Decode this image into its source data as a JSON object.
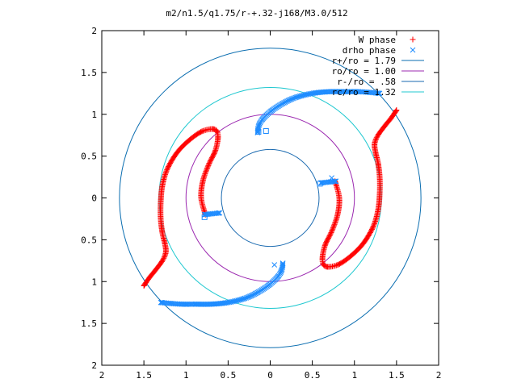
{
  "chart_data": {
    "type": "scatter",
    "title": "m2/n1.5/q1.75/r-+.32-j168/M3.0/512",
    "xlabel": "",
    "ylabel": "",
    "xlim": [
      -2,
      2
    ],
    "ylim": [
      -2,
      2
    ],
    "x_ticks": [
      -2,
      -1.5,
      -1,
      -0.5,
      0,
      0.5,
      1,
      1.5,
      2
    ],
    "x_tick_labels": [
      "2",
      "1.5",
      "1",
      "0.5",
      "0",
      "0.5",
      "1",
      "1.5",
      "2"
    ],
    "y_ticks": [
      2,
      1.5,
      1,
      0.5,
      0,
      -0.5,
      -1,
      -1.5,
      -2
    ],
    "y_tick_labels": [
      "2",
      "1.5",
      "1",
      "0.5",
      "0",
      "0.5",
      "1",
      "1.5",
      "2"
    ],
    "grid": false,
    "legend_position": "top-right",
    "circles": [
      {
        "name": "r+/ro = 1.79",
        "radius": 1.79,
        "color": "#0a6db0"
      },
      {
        "name": "ro/ro = 1.00",
        "radius": 1.0,
        "color": "#9b28b0"
      },
      {
        "name": "r-/ro = .58",
        "radius": 0.58,
        "color": "#1a6ab0"
      },
      {
        "name": "rc/ro = 1.32",
        "radius": 1.32,
        "color": "#20c8d0"
      }
    ],
    "series": [
      {
        "name": "W phase",
        "marker": "+",
        "color": "#ff0000",
        "arms": [
          [
            [
              -0.77,
              -0.2
            ],
            [
              -0.82,
              0.0
            ],
            [
              -0.8,
              0.2
            ],
            [
              -0.73,
              0.4
            ],
            [
              -0.65,
              0.57
            ],
            [
              -0.62,
              0.74
            ],
            [
              -0.66,
              0.82
            ],
            [
              -0.8,
              0.8
            ],
            [
              -0.95,
              0.7
            ],
            [
              -1.1,
              0.55
            ],
            [
              -1.22,
              0.35
            ],
            [
              -1.28,
              0.15
            ],
            [
              -1.3,
              -0.05
            ],
            [
              -1.3,
              -0.25
            ],
            [
              -1.28,
              -0.42
            ],
            [
              -1.25,
              -0.55
            ],
            [
              -1.24,
              -0.65
            ],
            [
              -1.28,
              -0.75
            ],
            [
              -1.36,
              -0.86
            ],
            [
              -1.44,
              -0.96
            ],
            [
              -1.5,
              -1.05
            ]
          ],
          [
            [
              0.77,
              0.2
            ],
            [
              0.82,
              0.0
            ],
            [
              0.8,
              -0.2
            ],
            [
              0.73,
              -0.4
            ],
            [
              0.65,
              -0.57
            ],
            [
              0.62,
              -0.74
            ],
            [
              0.66,
              -0.82
            ],
            [
              0.8,
              -0.8
            ],
            [
              0.95,
              -0.7
            ],
            [
              1.1,
              -0.55
            ],
            [
              1.22,
              -0.35
            ],
            [
              1.28,
              -0.15
            ],
            [
              1.3,
              0.05
            ],
            [
              1.3,
              0.25
            ],
            [
              1.28,
              0.42
            ],
            [
              1.25,
              0.55
            ],
            [
              1.24,
              0.65
            ],
            [
              1.28,
              0.75
            ],
            [
              1.36,
              0.86
            ],
            [
              1.44,
              0.96
            ],
            [
              1.5,
              1.05
            ]
          ]
        ]
      },
      {
        "name": "drho phase",
        "marker": "x",
        "color": "#1e8cff",
        "arms": [
          [
            [
              -0.15,
              0.78
            ],
            [
              -0.14,
              0.85
            ],
            [
              -0.1,
              0.93
            ],
            [
              0.0,
              1.03
            ],
            [
              0.15,
              1.13
            ],
            [
              0.3,
              1.2
            ],
            [
              0.5,
              1.25
            ],
            [
              0.7,
              1.27
            ],
            [
              0.9,
              1.27
            ],
            [
              1.05,
              1.27
            ],
            [
              1.2,
              1.26
            ],
            [
              1.3,
              1.25
            ]
          ],
          [
            [
              0.15,
              -0.78
            ],
            [
              0.14,
              -0.85
            ],
            [
              0.1,
              -0.93
            ],
            [
              0.0,
              -1.03
            ],
            [
              -0.15,
              -1.13
            ],
            [
              -0.3,
              -1.2
            ],
            [
              -0.5,
              -1.25
            ],
            [
              -0.7,
              -1.27
            ],
            [
              -0.9,
              -1.27
            ],
            [
              -1.05,
              -1.27
            ],
            [
              -1.2,
              -1.26
            ],
            [
              -1.3,
              -1.25
            ]
          ],
          [
            [
              -0.78,
              -0.2
            ],
            [
              -0.7,
              -0.19
            ],
            [
              -0.6,
              -0.18
            ]
          ],
          [
            [
              0.78,
              0.2
            ],
            [
              0.7,
              0.19
            ],
            [
              0.6,
              0.18
            ]
          ]
        ],
        "extra_points": [
          [
            0.73,
            0.24
          ],
          [
            0.05,
            -0.8
          ]
        ]
      }
    ],
    "open_squares": [
      {
        "color": "#1e8cff",
        "points": [
          [
            -0.14,
            0.79
          ],
          [
            -0.05,
            0.8
          ],
          [
            0.59,
            0.17
          ],
          [
            -0.78,
            -0.23
          ]
        ]
      }
    ]
  }
}
